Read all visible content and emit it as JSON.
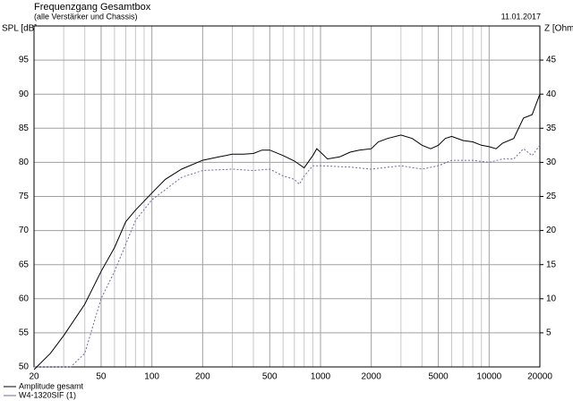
{
  "chart_data": {
    "type": "line",
    "title": "Frequenzgang Gesamtbox",
    "subtitle": "(alle Verstärker und Chassis)",
    "date": "11.01.2017",
    "y_label": "SPL [dB]",
    "y2_label": "Z [Ohm]",
    "xscale": "log",
    "xlim": [
      20,
      20000
    ],
    "xticks": [
      20,
      50,
      100,
      200,
      500,
      1000,
      2000,
      5000,
      10000,
      20000
    ],
    "xminor": [
      30,
      40,
      60,
      70,
      80,
      90,
      300,
      400,
      600,
      700,
      800,
      900,
      3000,
      4000,
      6000,
      7000,
      8000,
      9000
    ],
    "ylim": [
      50,
      100
    ],
    "yticks": [
      50,
      55,
      60,
      65,
      70,
      75,
      80,
      85,
      90,
      95
    ],
    "y2lim": [
      0,
      50
    ],
    "y2ticks": [
      5,
      10,
      15,
      20,
      25,
      30,
      35,
      40,
      45
    ],
    "grid": true,
    "legend": "bottom-left",
    "series": [
      {
        "name": "Amplitude gesamt",
        "color": "#000000",
        "dash": "none",
        "x": [
          20,
          25,
          30,
          40,
          50,
          60,
          70,
          80,
          100,
          120,
          150,
          200,
          250,
          300,
          350,
          400,
          450,
          500,
          600,
          700,
          800,
          900,
          950,
          1000,
          1100,
          1300,
          1500,
          1700,
          2000,
          2200,
          2500,
          3000,
          3500,
          4000,
          4500,
          5000,
          5500,
          6000,
          7000,
          8000,
          9000,
          10000,
          11000,
          12000,
          14000,
          16000,
          18000,
          20000
        ],
        "values": [
          49.6,
          52,
          54.6,
          59.2,
          64,
          67.5,
          71.3,
          73,
          75.5,
          77.5,
          79,
          80.3,
          80.8,
          81.2,
          81.2,
          81.3,
          81.8,
          81.8,
          81,
          80.2,
          79.2,
          81,
          82,
          81.5,
          80.5,
          80.8,
          81.5,
          81.8,
          82,
          83,
          83.5,
          84,
          83.5,
          82.5,
          82,
          82.5,
          83.5,
          83.8,
          83.2,
          83,
          82.5,
          82.3,
          82,
          82.8,
          83.5,
          86.5,
          87,
          90
        ]
      },
      {
        "name": "W4-1320SIF (1)",
        "color": "#6a6aa8",
        "dash": "2 2",
        "x": [
          20,
          30,
          33,
          40,
          50,
          60,
          70,
          80,
          100,
          150,
          200,
          300,
          400,
          500,
          600,
          700,
          750,
          800,
          900,
          1000,
          1500,
          2000,
          3000,
          4000,
          5000,
          6000,
          8000,
          10000,
          12000,
          14000,
          16000,
          18000,
          20000
        ],
        "values": [
          50,
          50,
          50,
          52,
          60,
          64,
          68,
          71.5,
          74.5,
          77.8,
          78.8,
          79,
          78.8,
          79,
          78,
          77.5,
          76.8,
          78,
          79.5,
          79.5,
          79.3,
          79,
          79.5,
          79,
          79.5,
          80.3,
          80.3,
          80,
          80.5,
          80.5,
          82,
          81,
          82.5
        ]
      }
    ]
  }
}
